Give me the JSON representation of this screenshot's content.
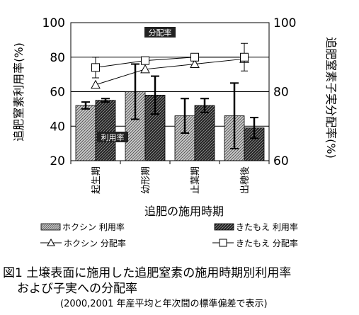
{
  "chart_data": {
    "type": "bar",
    "xlabel": "追肥の施用時期",
    "ylabel_left": "追肥窒素利用率(%)",
    "ylabel_right": "追肥窒素子実分配率(%)",
    "categories": [
      "起生期",
      "幼形期",
      "止葉期",
      "出穂後"
    ],
    "ylim_left": [
      20,
      100
    ],
    "yticks_left": [
      "20",
      "40",
      "60",
      "80",
      "100"
    ],
    "ylim_right": [
      60,
      100
    ],
    "yticks_right": [
      "60",
      "80",
      "100"
    ],
    "grid": true,
    "legend_position": "bottom",
    "series": [
      {
        "name": "ホクシン 利用率",
        "kind": "bar",
        "axis": "left",
        "values": [
          52,
          60,
          46,
          46
        ],
        "error": [
          2,
          16,
          10,
          19
        ],
        "color": "#8c8c8c"
      },
      {
        "name": "きたもえ 利用率",
        "kind": "bar",
        "axis": "left",
        "values": [
          55,
          58,
          52,
          39
        ],
        "error": [
          1,
          11,
          4,
          6
        ],
        "color": "#202020"
      },
      {
        "name": "ホクシン 分配率",
        "kind": "line",
        "axis": "right",
        "marker": "triangle",
        "values": [
          82,
          86.5,
          88,
          89.5
        ],
        "error": [
          0,
          0,
          0,
          0
        ],
        "color": "#000000"
      },
      {
        "name": "きたもえ 分配率",
        "kind": "line",
        "axis": "right",
        "marker": "square",
        "values": [
          87,
          89,
          90,
          90
        ],
        "error": [
          3,
          0,
          0,
          4
        ],
        "color": "#000000"
      }
    ],
    "annotations": [
      {
        "text": "分配率"
      },
      {
        "text": "利用率"
      }
    ]
  },
  "caption": {
    "line1": "図1  土壌表面に施用した追肥窒素の施用時期別利用率",
    "line2": "および子実への分配率",
    "line3": "(2000,2001 年産平均と年次間の標準偏差で表示)"
  },
  "colors": {
    "gridline": "#000000",
    "light_bar": "#9a9a9a",
    "dark_bar": "#2a2a2a"
  }
}
